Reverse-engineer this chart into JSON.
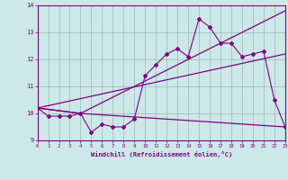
{
  "xlabel": "Windchill (Refroidissement éolien,°C)",
  "bg_color": "#cce8e8",
  "line_color": "#800080",
  "grid_color": "#9bb8b8",
  "xlim": [
    0,
    23
  ],
  "ylim": [
    9,
    14
  ],
  "yticks": [
    9,
    10,
    11,
    12,
    13,
    14
  ],
  "xticks": [
    0,
    1,
    2,
    3,
    4,
    5,
    6,
    7,
    8,
    9,
    10,
    11,
    12,
    13,
    14,
    15,
    16,
    17,
    18,
    19,
    20,
    21,
    22,
    23
  ],
  "series1_x": [
    0,
    1,
    2,
    3,
    4,
    5,
    6,
    7,
    8,
    9,
    10,
    11,
    12,
    13,
    14,
    15,
    16,
    17,
    18,
    19,
    20,
    21,
    22,
    23
  ],
  "series1_y": [
    10.2,
    9.9,
    9.9,
    9.9,
    10.0,
    9.3,
    9.6,
    9.5,
    9.5,
    9.8,
    11.4,
    11.8,
    12.2,
    12.4,
    12.1,
    13.5,
    13.2,
    12.6,
    12.6,
    12.1,
    12.2,
    12.3,
    10.5,
    9.5
  ],
  "series2_x": [
    0,
    4,
    23
  ],
  "series2_y": [
    10.2,
    10.0,
    13.8
  ],
  "series3_x": [
    0,
    4,
    23
  ],
  "series3_y": [
    10.2,
    10.0,
    9.5
  ],
  "series4_x": [
    0,
    23
  ],
  "series4_y": [
    10.2,
    12.2
  ]
}
